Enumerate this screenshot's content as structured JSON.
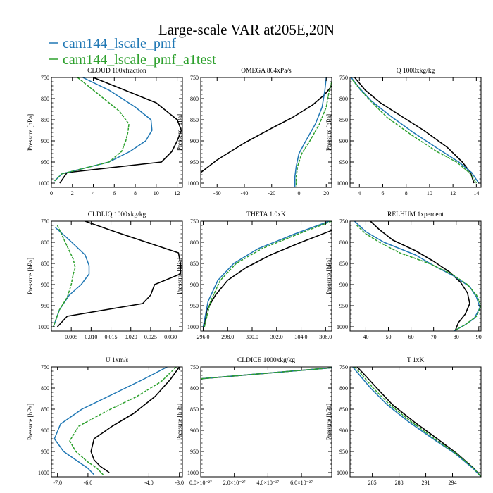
{
  "title": "Large-scale VAR at205E,20N",
  "legend": [
    {
      "name": "cam144_lscale_pmf",
      "color": "#1f77b4"
    },
    {
      "name": "cam144_lscale_pmf_a1test",
      "color": "#2ca02c"
    }
  ],
  "colors": {
    "black": "#000000",
    "blue": "#1f77b4",
    "green": "#2ca02c"
  },
  "chart_data": [
    {
      "type": "line",
      "title": "CLOUD  100xfraction",
      "ylabel": "Pressure [hPa]",
      "xlim": [
        0,
        12.5
      ],
      "ylim": [
        1010,
        750
      ],
      "xticks": [
        0,
        2,
        4,
        6,
        8,
        10,
        12
      ],
      "xticklabels": [
        "0",
        "2",
        "4",
        "6",
        "8",
        "10",
        "12"
      ],
      "yticks": [
        750,
        800,
        850,
        900,
        950,
        1000
      ],
      "yticklabels": [
        "750",
        "800",
        "850",
        "900",
        "950",
        "1000"
      ],
      "series": [
        {
          "color": "black",
          "dashed": false,
          "x": [
            4.0,
            7.0,
            10.0,
            12.0,
            12.4,
            12.0,
            11.5,
            10.5,
            1.5,
            0.8
          ],
          "y": [
            750,
            780,
            810,
            850,
            875,
            900,
            925,
            950,
            975,
            1000
          ]
        },
        {
          "color": "blue",
          "dashed": false,
          "x": [
            3.0,
            5.5,
            8.0,
            9.5,
            9.6,
            9.0,
            7.5,
            5.5,
            1.0,
            0.3
          ],
          "y": [
            750,
            780,
            820,
            850,
            875,
            900,
            925,
            950,
            978,
            995
          ]
        },
        {
          "color": "green",
          "dashed": true,
          "x": [
            2.5,
            4.5,
            6.5,
            7.4,
            7.3,
            7.1,
            6.7,
            5.5,
            1.0,
            0.3
          ],
          "y": [
            750,
            790,
            830,
            860,
            880,
            900,
            925,
            950,
            978,
            995
          ]
        }
      ]
    },
    {
      "type": "line",
      "title": "OMEGA  864xPa/s",
      "ylabel": "Pressure [hPa]",
      "xlim": [
        -72,
        24
      ],
      "ylim": [
        1010,
        750
      ],
      "xticks": [
        -60,
        -40,
        -20,
        0,
        20
      ],
      "xticklabels": [
        "-60",
        "-40",
        "-20",
        "0",
        "20"
      ],
      "yticks": [
        750,
        800,
        850,
        900,
        950,
        1000
      ],
      "yticklabels": [
        "750",
        "800",
        "850",
        "900",
        "950",
        "1000"
      ],
      "series": [
        {
          "color": "black",
          "dashed": false,
          "x": [
            24,
            19,
            10,
            -5,
            -20,
            -40,
            -60,
            -72
          ],
          "y": [
            770,
            790,
            815,
            845,
            870,
            905,
            945,
            975
          ]
        },
        {
          "color": "blue",
          "dashed": false,
          "x": [
            20,
            19,
            17,
            12,
            5,
            0,
            -2,
            -3,
            -3
          ],
          "y": [
            750,
            780,
            820,
            860,
            900,
            930,
            960,
            985,
            1010
          ]
        },
        {
          "color": "green",
          "dashed": true,
          "x": [
            24,
            22,
            20,
            15,
            8,
            2,
            -1,
            -2,
            -2
          ],
          "y": [
            760,
            785,
            820,
            860,
            900,
            930,
            960,
            985,
            1010
          ]
        }
      ]
    },
    {
      "type": "line",
      "title": "Q  1000xkg/kg",
      "ylabel": "Pressure [hPa]",
      "xlim": [
        3.2,
        14.4
      ],
      "ylim": [
        1010,
        750
      ],
      "xticks": [
        4,
        6,
        8,
        10,
        12,
        14
      ],
      "xticklabels": [
        "4",
        "6",
        "8",
        "10",
        "12",
        "14"
      ],
      "yticks": [
        750,
        800,
        850,
        900,
        950,
        1000
      ],
      "yticklabels": [
        "750",
        "800",
        "850",
        "900",
        "950",
        "1000"
      ],
      "series": [
        {
          "color": "black",
          "dashed": false,
          "x": [
            3.6,
            4.5,
            5.8,
            7.5,
            9.5,
            11.5,
            12.8,
            13.5,
            13.8
          ],
          "y": [
            750,
            780,
            810,
            840,
            875,
            915,
            950,
            975,
            1000
          ]
        },
        {
          "color": "blue",
          "dashed": false,
          "x": [
            3.3,
            4.0,
            5.0,
            6.6,
            8.6,
            10.8,
            12.5,
            13.6,
            14.2
          ],
          "y": [
            750,
            775,
            805,
            840,
            880,
            920,
            950,
            975,
            1000
          ]
        },
        {
          "color": "green",
          "dashed": true,
          "x": [
            3.4,
            4.1,
            5.1,
            6.4,
            8.4,
            10.6,
            12.3,
            13.4,
            14.0
          ],
          "y": [
            755,
            780,
            810,
            845,
            885,
            925,
            950,
            975,
            1000
          ]
        }
      ]
    },
    {
      "type": "line",
      "title": "CLDLIQ  1000xkg/kg",
      "ylabel": "Pressure [hPa]",
      "xlim": [
        0,
        0.033
      ],
      "ylim": [
        1010,
        750
      ],
      "xticks": [
        0.005,
        0.01,
        0.015,
        0.02,
        0.025,
        0.03
      ],
      "xticklabels": [
        "0.005",
        "0.010",
        "0.015",
        "0.020",
        "0.025",
        "0.030"
      ],
      "yticks": [
        750,
        800,
        850,
        900,
        950,
        1000
      ],
      "yticklabels": [
        "750",
        "800",
        "850",
        "900",
        "950",
        "1000"
      ],
      "series": [
        {
          "color": "black",
          "dashed": false,
          "x": [
            0.0085,
            0.016,
            0.024,
            0.032,
            0.0325,
            0.0325,
            0.026,
            0.025,
            0.023,
            0.004,
            0.0015
          ],
          "y": [
            750,
            775,
            800,
            825,
            850,
            875,
            900,
            925,
            945,
            975,
            1000
          ]
        },
        {
          "color": "blue",
          "dashed": false,
          "x": [
            0.001,
            0.004,
            0.0085,
            0.0095,
            0.0095,
            0.0075,
            0.0045,
            0.002,
            0.0005
          ],
          "y": [
            765,
            790,
            830,
            855,
            875,
            900,
            925,
            960,
            1000
          ]
        },
        {
          "color": "green",
          "dashed": true,
          "x": [
            0.0015,
            0.0035,
            0.0055,
            0.006,
            0.0055,
            0.005,
            0.004,
            0.002,
            0.0005
          ],
          "y": [
            760,
            800,
            840,
            860,
            875,
            900,
            930,
            960,
            1000
          ]
        }
      ]
    },
    {
      "type": "line",
      "title": "THETA  1.0xK",
      "ylabel": "Pressure [hPa]",
      "xlim": [
        295.8,
        306.5
      ],
      "ylim": [
        1010,
        750
      ],
      "xticks": [
        296,
        298,
        300,
        302,
        304,
        306
      ],
      "xticklabels": [
        "296.0",
        "298.0",
        "300.0",
        "302.0",
        "304.0",
        "306.0"
      ],
      "yticks": [
        750,
        800,
        850,
        900,
        950,
        1000
      ],
      "yticklabels": [
        "750",
        "800",
        "850",
        "900",
        "950",
        "1000"
      ],
      "series": [
        {
          "color": "black",
          "dashed": false,
          "x": [
            306.5,
            304.0,
            301.5,
            299.5,
            298.0,
            297.0,
            296.3,
            296.1
          ],
          "y": [
            772,
            800,
            830,
            860,
            890,
            925,
            960,
            1000
          ]
        },
        {
          "color": "blue",
          "dashed": false,
          "x": [
            306.3,
            303.5,
            300.5,
            298.5,
            297.2,
            296.4,
            296.0
          ],
          "y": [
            750,
            780,
            815,
            850,
            890,
            940,
            1000
          ]
        },
        {
          "color": "green",
          "dashed": true,
          "x": [
            306.5,
            303.8,
            300.8,
            298.7,
            297.4,
            296.6,
            296.1
          ],
          "y": [
            750,
            780,
            815,
            850,
            890,
            940,
            1000
          ]
        }
      ]
    },
    {
      "type": "line",
      "title": "RELHUM  1xpercent",
      "ylabel": "Pressure [hPa]",
      "xlim": [
        33,
        91
      ],
      "ylim": [
        1010,
        750
      ],
      "xticks": [
        40,
        50,
        60,
        70,
        80,
        90
      ],
      "xticklabels": [
        "40",
        "50",
        "60",
        "70",
        "80",
        "90"
      ],
      "yticks": [
        750,
        800,
        850,
        900,
        950,
        1000
      ],
      "yticklabels": [
        "750",
        "800",
        "850",
        "900",
        "950",
        "1000"
      ],
      "series": [
        {
          "color": "black",
          "dashed": false,
          "x": [
            42,
            46,
            52,
            62,
            70,
            77,
            82,
            85,
            86,
            84,
            81,
            79.5
          ],
          "y": [
            750,
            770,
            795,
            820,
            845,
            870,
            895,
            920,
            945,
            970,
            990,
            1010
          ]
        },
        {
          "color": "blue",
          "dashed": false,
          "x": [
            35,
            40,
            48,
            62,
            70,
            79,
            86,
            89,
            90.5,
            88,
            84,
            79
          ],
          "y": [
            750,
            775,
            800,
            830,
            855,
            880,
            905,
            930,
            955,
            980,
            995,
            1010
          ]
        },
        {
          "color": "green",
          "dashed": true,
          "x": [
            36,
            40,
            46,
            55,
            68,
            78,
            85,
            89,
            91,
            89,
            84,
            79
          ],
          "y": [
            760,
            780,
            800,
            825,
            850,
            875,
            900,
            925,
            950,
            975,
            995,
            1010
          ]
        }
      ]
    },
    {
      "type": "line",
      "title": "U  1xm/s",
      "ylabel": "Pressure [hPa]",
      "xlim": [
        -7.2,
        -2.9
      ],
      "ylim": [
        1010,
        750
      ],
      "xticks": [
        -7,
        -6,
        -4,
        -3
      ],
      "xticklabels": [
        "-7.0",
        "-6.0",
        "-4.0",
        "-3.0"
      ],
      "yticks": [
        750,
        800,
        850,
        900,
        950,
        1000
      ],
      "yticklabels": [
        "750",
        "800",
        "850",
        "900",
        "950",
        "1000"
      ],
      "series": [
        {
          "color": "black",
          "dashed": false,
          "x": [
            -3.0,
            -3.3,
            -3.8,
            -4.5,
            -5.2,
            -5.8,
            -5.9,
            -5.8,
            -5.6,
            -5.3
          ],
          "y": [
            750,
            780,
            820,
            860,
            890,
            920,
            950,
            970,
            985,
            1000
          ]
        },
        {
          "color": "blue",
          "dashed": false,
          "x": [
            -3.4,
            -4.2,
            -5.2,
            -6.2,
            -6.9,
            -7.1,
            -6.8,
            -6.3,
            -6.0,
            -5.8
          ],
          "y": [
            750,
            780,
            815,
            850,
            885,
            920,
            950,
            975,
            990,
            1005
          ]
        },
        {
          "color": "green",
          "dashed": true,
          "x": [
            -3.1,
            -3.6,
            -4.4,
            -5.4,
            -6.3,
            -6.6,
            -6.4,
            -6.0,
            -5.7,
            -5.5
          ],
          "y": [
            750,
            785,
            820,
            855,
            890,
            925,
            950,
            975,
            990,
            1005
          ]
        }
      ]
    },
    {
      "type": "line",
      "title": "CLDICE  1000xkg/kg",
      "ylabel": "Pressure [hPa]",
      "xlim": [
        0,
        7.8e-27
      ],
      "ylim": [
        1010,
        750
      ],
      "xticks": [
        0,
        2e-27,
        4e-27,
        6e-27
      ],
      "xticklabels": [
        "0.0×10⁻²⁷",
        "2.0×10⁻²⁷",
        "4.0×10⁻²⁷",
        "6.0×10⁻²⁷"
      ],
      "yticks": [
        750,
        800,
        850,
        900,
        950,
        1000
      ],
      "yticklabels": [
        "750",
        "800",
        "850",
        "900",
        "950",
        "1000"
      ],
      "series": [
        {
          "color": "black",
          "dashed": false,
          "x": [
            0,
            7.8e-27
          ],
          "y": [
            778,
            752
          ]
        },
        {
          "color": "blue",
          "dashed": false,
          "x": [
            0,
            7.8e-27
          ],
          "y": [
            778,
            752
          ]
        },
        {
          "color": "green",
          "dashed": true,
          "x": [
            0,
            7.8e-27
          ],
          "y": [
            778,
            752
          ]
        }
      ]
    },
    {
      "type": "line",
      "title": "T  1xK",
      "ylabel": "Pressure [hPa]",
      "xlim": [
        282.5,
        297.2
      ],
      "ylim": [
        1010,
        750
      ],
      "xticks": [
        285,
        288,
        291,
        294
      ],
      "xticklabels": [
        "285",
        "288",
        "291",
        "294"
      ],
      "yticks": [
        750,
        800,
        850,
        900,
        950,
        1000
      ],
      "yticklabels": [
        "750",
        "800",
        "850",
        "900",
        "950",
        "1000"
      ],
      "series": [
        {
          "color": "black",
          "dashed": false,
          "x": [
            283.3,
            284.2,
            285.5,
            287.3,
            289.7,
            292.3,
            294.5,
            296.4,
            297.2
          ],
          "y": [
            750,
            770,
            800,
            840,
            880,
            920,
            955,
            990,
            1010
          ]
        },
        {
          "color": "blue",
          "dashed": false,
          "x": [
            282.8,
            283.6,
            284.8,
            286.7,
            289.1,
            291.8,
            294.3,
            296.3,
            297.2
          ],
          "y": [
            750,
            770,
            800,
            840,
            880,
            920,
            955,
            990,
            1010
          ]
        },
        {
          "color": "green",
          "dashed": true,
          "x": [
            283.0,
            283.9,
            285.1,
            287.0,
            289.4,
            292.0,
            294.4,
            296.4,
            297.2
          ],
          "y": [
            750,
            770,
            800,
            840,
            880,
            920,
            955,
            990,
            1010
          ]
        }
      ]
    }
  ]
}
